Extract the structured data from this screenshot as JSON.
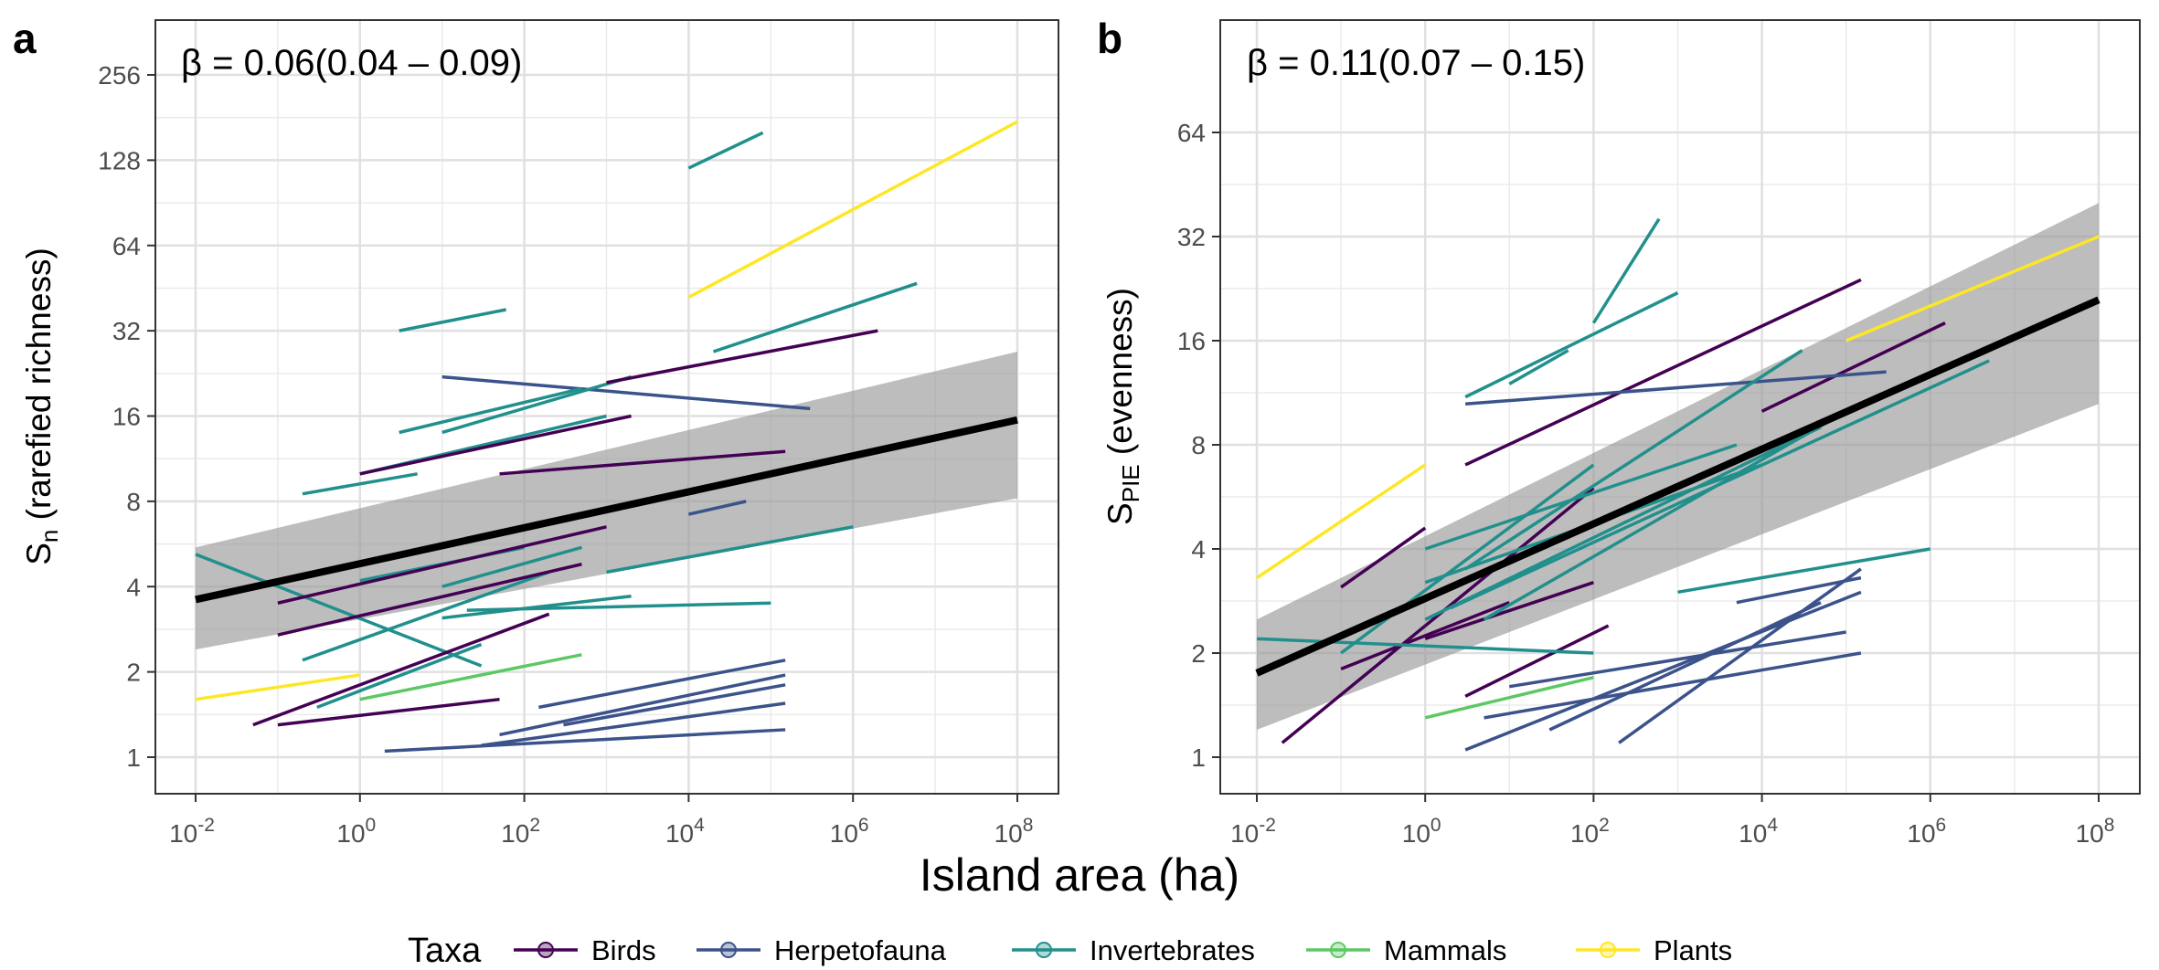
{
  "chart_data": [
    {
      "type": "scatter",
      "panel_label": "a",
      "annotation": "β = 0.06(0.04 – 0.09)",
      "ylabel_main": "S",
      "ylabel_sub": "n",
      "ylabel_rest": " (rarefied richness)",
      "x_scale": "log10",
      "y_scale": "log2",
      "xlim": [
        0.01,
        100000000
      ],
      "ylim": [
        1,
        256
      ],
      "x_ticks": [
        0.01,
        1,
        100,
        10000,
        1000000,
        100000000
      ],
      "x_tick_exponents": [
        "-2",
        "0",
        "2",
        "4",
        "6",
        "8"
      ],
      "y_ticks": [
        1,
        2,
        4,
        8,
        16,
        32,
        64,
        128,
        256
      ],
      "y_tick_labels": [
        "1",
        "2",
        "4",
        "8",
        "16",
        "32",
        "64",
        "128",
        "256"
      ],
      "overall_fit": {
        "x": [
          0.01,
          100000000
        ],
        "y": [
          3.6,
          15.5
        ],
        "ci_lower": [
          2.4,
          8.2
        ],
        "ci_upper": [
          5.5,
          27
        ]
      },
      "study_fits": [
        {
          "taxon": "Plants",
          "x": [
            0.01,
            1
          ],
          "y": [
            1.6,
            1.95
          ]
        },
        {
          "taxon": "Plants",
          "x": [
            10000,
            100000000
          ],
          "y": [
            42,
            175
          ]
        },
        {
          "taxon": "Herpetofauna",
          "x": [
            10,
            300000
          ],
          "y": [
            22,
            17
          ]
        },
        {
          "taxon": "Herpetofauna",
          "x": [
            30,
            150000
          ],
          "y": [
            1.1,
            1.55
          ]
        },
        {
          "taxon": "Herpetofauna",
          "x": [
            2,
            150000
          ],
          "y": [
            1.05,
            1.25
          ]
        },
        {
          "taxon": "Herpetofauna",
          "x": [
            300,
            150000
          ],
          "y": [
            1.3,
            1.8
          ]
        },
        {
          "taxon": "Herpetofauna",
          "x": [
            150,
            150000
          ],
          "y": [
            1.5,
            2.2
          ]
        },
        {
          "taxon": "Herpetofauna",
          "x": [
            50,
            150000
          ],
          "y": [
            1.2,
            1.95
          ]
        },
        {
          "taxon": "Herpetofauna",
          "x": [
            10000,
            50000
          ],
          "y": [
            7.2,
            8
          ]
        },
        {
          "taxon": "Invertebrates",
          "x": [
            10000,
            80000
          ],
          "y": [
            120,
            160
          ]
        },
        {
          "taxon": "Invertebrates",
          "x": [
            0.01,
            30
          ],
          "y": [
            5.2,
            2.1
          ]
        },
        {
          "taxon": "Invertebrates",
          "x": [
            3,
            60
          ],
          "y": [
            32,
            38
          ]
        },
        {
          "taxon": "Invertebrates",
          "x": [
            20000,
            6000000
          ],
          "y": [
            27,
            47
          ]
        },
        {
          "taxon": "Invertebrates",
          "x": [
            0.2,
            5
          ],
          "y": [
            8.5,
            10
          ]
        },
        {
          "taxon": "Invertebrates",
          "x": [
            10,
            2000
          ],
          "y": [
            3.1,
            3.7
          ]
        },
        {
          "taxon": "Invertebrates",
          "x": [
            1000,
            1000000
          ],
          "y": [
            4.5,
            6.5
          ]
        },
        {
          "taxon": "Invertebrates",
          "x": [
            0.3,
            30
          ],
          "y": [
            1.5,
            2.5
          ]
        },
        {
          "taxon": "Invertebrates",
          "x": [
            10,
            2000
          ],
          "y": [
            14,
            22
          ]
        },
        {
          "taxon": "Invertebrates",
          "x": [
            20,
            100000
          ],
          "y": [
            3.3,
            3.5
          ]
        },
        {
          "taxon": "Invertebrates",
          "x": [
            10,
            500
          ],
          "y": [
            4,
            5.5
          ]
        },
        {
          "taxon": "Invertebrates",
          "x": [
            0.2,
            200
          ],
          "y": [
            2.2,
            4.5
          ]
        },
        {
          "taxon": "Invertebrates",
          "x": [
            1,
            1000
          ],
          "y": [
            10,
            16
          ]
        },
        {
          "taxon": "Invertebrates",
          "x": [
            3,
            500
          ],
          "y": [
            14,
            20
          ]
        },
        {
          "taxon": "Invertebrates",
          "x": [
            1,
            100
          ],
          "y": [
            4.2,
            5.5
          ]
        },
        {
          "taxon": "Mammals",
          "x": [
            1,
            500
          ],
          "y": [
            1.6,
            2.3
          ]
        },
        {
          "taxon": "Birds",
          "x": [
            1000,
            2000000
          ],
          "y": [
            21,
            32
          ]
        },
        {
          "taxon": "Birds",
          "x": [
            0.1,
            500
          ],
          "y": [
            2.7,
            4.8
          ]
        },
        {
          "taxon": "Birds",
          "x": [
            0.05,
            200
          ],
          "y": [
            1.3,
            3.2
          ]
        },
        {
          "taxon": "Birds",
          "x": [
            0.1,
            1000
          ],
          "y": [
            3.5,
            6.5
          ]
        },
        {
          "taxon": "Birds",
          "x": [
            1,
            2000
          ],
          "y": [
            10,
            16
          ]
        },
        {
          "taxon": "Birds",
          "x": [
            50,
            150000
          ],
          "y": [
            10,
            12
          ]
        },
        {
          "taxon": "Birds",
          "x": [
            0.1,
            50
          ],
          "y": [
            1.3,
            1.6
          ]
        }
      ]
    },
    {
      "type": "scatter",
      "panel_label": "b",
      "annotation": "β = 0.11(0.07 – 0.15)",
      "ylabel_main": "S",
      "ylabel_sub": "PIE",
      "ylabel_rest": " (evenness)",
      "x_scale": "log10",
      "y_scale": "log2",
      "xlim": [
        0.01,
        100000000
      ],
      "ylim": [
        1,
        90
      ],
      "x_ticks": [
        0.01,
        1,
        100,
        10000,
        1000000,
        100000000
      ],
      "x_tick_exponents": [
        "-2",
        "0",
        "2",
        "4",
        "6",
        "8"
      ],
      "y_ticks": [
        1,
        2,
        4,
        8,
        16,
        32,
        64
      ],
      "y_tick_labels": [
        "1",
        "2",
        "4",
        "8",
        "16",
        "32",
        "64"
      ],
      "overall_fit": {
        "x": [
          0.01,
          100000000
        ],
        "y": [
          1.75,
          21
        ],
        "ci_lower": [
          1.2,
          10.5
        ],
        "ci_upper": [
          2.5,
          40
        ]
      },
      "study_fits": [
        {
          "taxon": "Plants",
          "x": [
            0.01,
            1
          ],
          "y": [
            3.3,
            7
          ]
        },
        {
          "taxon": "Plants",
          "x": [
            100000,
            100000000
          ],
          "y": [
            16,
            32
          ]
        },
        {
          "taxon": "Birds",
          "x": [
            0.02,
            100
          ],
          "y": [
            1.1,
            6
          ]
        },
        {
          "taxon": "Birds",
          "x": [
            0.1,
            1
          ],
          "y": [
            3.1,
            4.6
          ]
        },
        {
          "taxon": "Birds",
          "x": [
            3,
            150000
          ],
          "y": [
            7,
            24
          ]
        },
        {
          "taxon": "Birds",
          "x": [
            10000,
            1500000
          ],
          "y": [
            10,
            18
          ]
        },
        {
          "taxon": "Birds",
          "x": [
            1,
            100
          ],
          "y": [
            2.2,
            3.2
          ]
        },
        {
          "taxon": "Birds",
          "x": [
            3,
            150
          ],
          "y": [
            1.5,
            2.4
          ]
        },
        {
          "taxon": "Birds",
          "x": [
            0.1,
            10
          ],
          "y": [
            1.8,
            2.8
          ]
        },
        {
          "taxon": "Herpetofauna",
          "x": [
            3,
            300000
          ],
          "y": [
            10.5,
            13
          ]
        },
        {
          "taxon": "Herpetofauna",
          "x": [
            3,
            150000
          ],
          "y": [
            1.05,
            3
          ]
        },
        {
          "taxon": "Herpetofauna",
          "x": [
            5,
            150000
          ],
          "y": [
            1.3,
            2
          ]
        },
        {
          "taxon": "Herpetofauna",
          "x": [
            10,
            100000
          ],
          "y": [
            1.6,
            2.3
          ]
        },
        {
          "taxon": "Herpetofauna",
          "x": [
            30,
            50000
          ],
          "y": [
            1.2,
            2.8
          ]
        },
        {
          "taxon": "Herpetofauna",
          "x": [
            200,
            150000
          ],
          "y": [
            1.1,
            3.5
          ]
        },
        {
          "taxon": "Herpetofauna",
          "x": [
            5000,
            150000
          ],
          "y": [
            2.8,
            3.3
          ]
        },
        {
          "taxon": "Invertebrates",
          "x": [
            0.01,
            100
          ],
          "y": [
            2.2,
            2
          ]
        },
        {
          "taxon": "Invertebrates",
          "x": [
            1000,
            1000000
          ],
          "y": [
            3,
            4
          ]
        },
        {
          "taxon": "Invertebrates",
          "x": [
            100,
            600
          ],
          "y": [
            18,
            36
          ]
        },
        {
          "taxon": "Invertebrates",
          "x": [
            3,
            1000
          ],
          "y": [
            11,
            22
          ]
        },
        {
          "taxon": "Invertebrates",
          "x": [
            10,
            50
          ],
          "y": [
            12,
            15
          ]
        },
        {
          "taxon": "Invertebrates",
          "x": [
            2,
            5000000
          ],
          "y": [
            2.7,
            14
          ]
        },
        {
          "taxon": "Invertebrates",
          "x": [
            1,
            50000
          ],
          "y": [
            2.5,
            9
          ]
        },
        {
          "taxon": "Invertebrates",
          "x": [
            0.1,
            100
          ],
          "y": [
            2,
            7
          ]
        },
        {
          "taxon": "Invertebrates",
          "x": [
            1,
            10000
          ],
          "y": [
            3.2,
            7
          ]
        },
        {
          "taxon": "Invertebrates",
          "x": [
            5,
            100000
          ],
          "y": [
            2.5,
            10
          ]
        },
        {
          "taxon": "Invertebrates",
          "x": [
            3,
            30000
          ],
          "y": [
            3.5,
            15
          ]
        },
        {
          "taxon": "Invertebrates",
          "x": [
            1,
            5000
          ],
          "y": [
            4,
            8
          ]
        },
        {
          "taxon": "Mammals",
          "x": [
            1,
            100
          ],
          "y": [
            1.3,
            1.7
          ]
        }
      ]
    }
  ],
  "axis": {
    "xlabel": "Island area (ha)",
    "x_tick_base": "10"
  },
  "legend": {
    "title": "Taxa",
    "items": [
      {
        "label": "Birds",
        "color": "#440154"
      },
      {
        "label": "Herpetofauna",
        "color": "#3b528b"
      },
      {
        "label": "Invertebrates",
        "color": "#21908c"
      },
      {
        "label": "Mammals",
        "color": "#5dc863"
      },
      {
        "label": "Plants",
        "color": "#fde725"
      }
    ]
  },
  "colors": {
    "Birds": "#440154",
    "Herpetofauna": "#3b528b",
    "Invertebrates": "#21908c",
    "Mammals": "#5dc863",
    "Plants": "#fde725",
    "overall_fit": "#000000",
    "ci_band": "#999999"
  }
}
